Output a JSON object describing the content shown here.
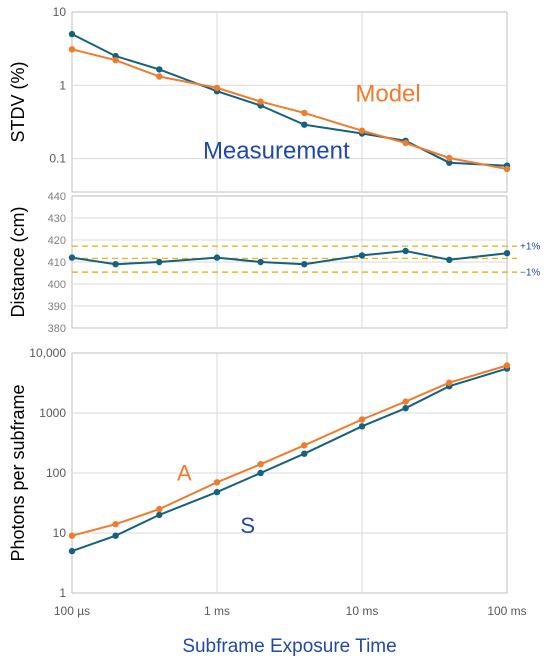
{
  "colors": {
    "measurement": "#13627f",
    "model": "#f07b2c",
    "reference": "#e8b81d",
    "grid": "#d9d9d9",
    "axis_label": "#1f4aa8"
  },
  "x_axis": {
    "label": "Subframe Exposure Time",
    "ticks": [
      {
        "value": 0.0001,
        "label": "100 µs"
      },
      {
        "value": 0.001,
        "label": "1 ms"
      },
      {
        "value": 0.01,
        "label": "10 ms"
      },
      {
        "value": 0.1,
        "label": "100 ms"
      }
    ],
    "range": [
      0.0001,
      0.1
    ],
    "scale": "log"
  },
  "chart_data": [
    {
      "type": "line",
      "ylabel": "STDV (%)",
      "yscale": "log",
      "ylim": [
        0.035,
        10
      ],
      "yticks": [
        {
          "value": 0.1,
          "label": "0.1"
        },
        {
          "value": 1,
          "label": "1"
        },
        {
          "value": 10,
          "label": "10"
        }
      ],
      "grid": true,
      "annotations": [
        {
          "text": "Model",
          "series": "model",
          "x": 0.009,
          "y": 0.6,
          "size": 24
        },
        {
          "text": "Measurement",
          "series": "measurement",
          "x": 0.0008,
          "y": 0.1,
          "size": 24
        }
      ],
      "series": [
        {
          "key": "measurement",
          "x": [
            0.0001,
            0.0002,
            0.0004,
            0.001,
            0.002,
            0.004,
            0.01,
            0.02,
            0.04,
            0.1
          ],
          "values": [
            5.0,
            2.5,
            1.65,
            0.83,
            0.53,
            0.29,
            0.22,
            0.175,
            0.088,
            0.08
          ]
        },
        {
          "key": "model",
          "x": [
            0.0001,
            0.0002,
            0.0004,
            0.001,
            0.002,
            0.004,
            0.01,
            0.02,
            0.04,
            0.1
          ],
          "values": [
            3.1,
            2.2,
            1.32,
            0.92,
            0.6,
            0.42,
            0.24,
            0.163,
            0.102,
            0.072
          ]
        }
      ]
    },
    {
      "type": "line",
      "ylabel": "Distance (cm)",
      "yscale": "linear",
      "ylim": [
        380,
        440
      ],
      "yticks": [
        {
          "value": 380,
          "label": "380"
        },
        {
          "value": 390,
          "label": "390"
        },
        {
          "value": 400,
          "label": "400"
        },
        {
          "value": 410,
          "label": "410"
        },
        {
          "value": 420,
          "label": "420"
        },
        {
          "value": 430,
          "label": "430"
        },
        {
          "value": 440,
          "label": "440"
        }
      ],
      "grid": true,
      "reference_lines": [
        {
          "value": 417.2,
          "label": "+1%"
        },
        {
          "value": 411.6,
          "label": ""
        },
        {
          "value": 405.4,
          "label": "−1%"
        }
      ],
      "series": [
        {
          "key": "measurement",
          "x": [
            0.0001,
            0.0002,
            0.0004,
            0.001,
            0.002,
            0.004,
            0.01,
            0.02,
            0.04,
            0.1
          ],
          "values": [
            412,
            409,
            410,
            412,
            410,
            409,
            413,
            415,
            411,
            414
          ]
        }
      ]
    },
    {
      "type": "line",
      "ylabel": "Photons per subframe",
      "yscale": "log",
      "ylim": [
        1,
        10000
      ],
      "yticks": [
        {
          "value": 1,
          "label": "1"
        },
        {
          "value": 10,
          "label": "10"
        },
        {
          "value": 100,
          "label": "100"
        },
        {
          "value": 1000,
          "label": "1000"
        },
        {
          "value": 10000,
          "label": "10,000"
        }
      ],
      "grid": true,
      "annotations": [
        {
          "text": "A",
          "series": "model",
          "x": 0.00053,
          "y": 75,
          "size": 22
        },
        {
          "text": "S",
          "series": "measurement",
          "x": 0.00145,
          "y": 10,
          "size": 22
        }
      ],
      "series": [
        {
          "key": "measurement",
          "x": [
            0.0001,
            0.0002,
            0.0004,
            0.001,
            0.002,
            0.004,
            0.01,
            0.02,
            0.04,
            0.1
          ],
          "values": [
            5,
            9,
            20,
            48,
            100,
            210,
            600,
            1200,
            2800,
            5500
          ]
        },
        {
          "key": "model",
          "x": [
            0.0001,
            0.0002,
            0.0004,
            0.001,
            0.002,
            0.004,
            0.01,
            0.02,
            0.04,
            0.1
          ],
          "values": [
            9,
            14,
            25,
            70,
            140,
            290,
            780,
            1550,
            3200,
            6200
          ]
        }
      ]
    }
  ]
}
